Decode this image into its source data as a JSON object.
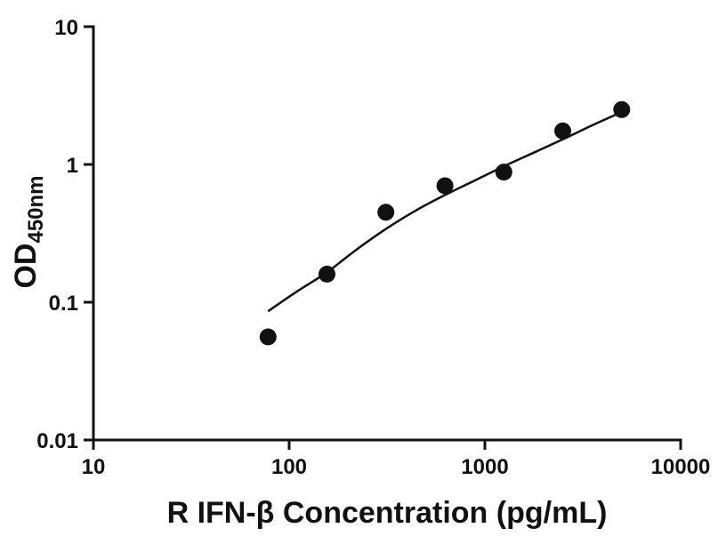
{
  "figure": {
    "background_color": "#ffffff"
  },
  "chart_data": {
    "type": "scatter",
    "title": "",
    "xlabel": "R IFN-β Concentration (pg/mL)",
    "ylabel_main": "OD",
    "ylabel_sub": "450nm",
    "x_scale": "log",
    "y_scale": "log",
    "xlim": [
      10,
      10000
    ],
    "ylim": [
      0.01,
      10
    ],
    "grid": false,
    "legend": "none",
    "axis_color": "#111111",
    "marker_size_px": 9.5,
    "x_ticks": [
      {
        "value": 10,
        "label": "10"
      },
      {
        "value": 100,
        "label": "100"
      },
      {
        "value": 1000,
        "label": "1000"
      },
      {
        "value": 10000,
        "label": "10000"
      }
    ],
    "y_ticks": [
      {
        "value": 0.01,
        "label": "0.01"
      },
      {
        "value": 0.1,
        "label": "0.1"
      },
      {
        "value": 1,
        "label": "1"
      },
      {
        "value": 10,
        "label": "10"
      }
    ],
    "series": [
      {
        "name": "standards",
        "marker": "circle",
        "color": "#111111",
        "points": [
          {
            "x": 78,
            "y": 0.056
          },
          {
            "x": 156,
            "y": 0.16
          },
          {
            "x": 312,
            "y": 0.45
          },
          {
            "x": 625,
            "y": 0.7
          },
          {
            "x": 1250,
            "y": 0.88
          },
          {
            "x": 2500,
            "y": 1.75
          },
          {
            "x": 5000,
            "y": 2.5
          }
        ]
      }
    ],
    "fit_curve": {
      "name": "fitted-curve",
      "color": "#111111",
      "points": [
        {
          "x": 78,
          "y": 0.086
        },
        {
          "x": 110,
          "y": 0.12
        },
        {
          "x": 156,
          "y": 0.165
        },
        {
          "x": 220,
          "y": 0.24
        },
        {
          "x": 312,
          "y": 0.34
        },
        {
          "x": 440,
          "y": 0.46
        },
        {
          "x": 625,
          "y": 0.6
        },
        {
          "x": 880,
          "y": 0.76
        },
        {
          "x": 1250,
          "y": 0.97
        },
        {
          "x": 1760,
          "y": 1.21
        },
        {
          "x": 2500,
          "y": 1.52
        },
        {
          "x": 3500,
          "y": 1.91
        },
        {
          "x": 5000,
          "y": 2.4
        }
      ]
    }
  }
}
